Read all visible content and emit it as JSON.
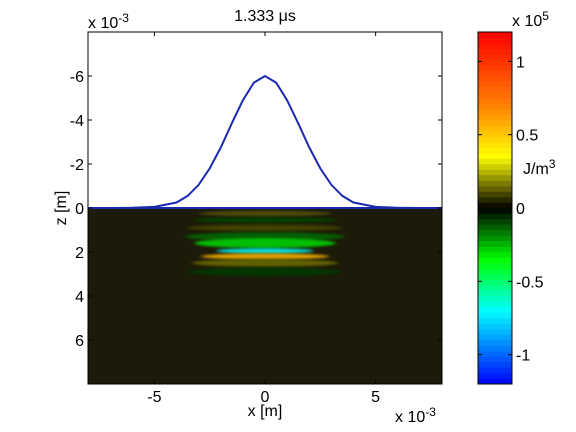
{
  "chart_data": [
    {
      "type": "heatmap",
      "title": "1.333 μs",
      "xlabel": "x [m]",
      "ylabel": "z [m]",
      "x_multiplier": "x 10",
      "x_multiplier_exp": "-3",
      "y_multiplier": "x 10",
      "y_multiplier_exp": "-3",
      "xlim": [
        -8,
        8
      ],
      "ylim": [
        -8,
        8
      ],
      "y_reversed": true,
      "x_ticks": [
        -5,
        0,
        5
      ],
      "x_tick_labels": [
        "-5",
        "0",
        "5"
      ],
      "y_ticks": [
        -6,
        -4,
        -2,
        0,
        2,
        4,
        6
      ],
      "y_tick_labels": [
        "-6",
        "-4",
        "-2",
        "0",
        "2",
        "4",
        "6"
      ],
      "background_color": "#1c1a08",
      "surface_line": {
        "z": 0,
        "color": "#1a2ab0"
      },
      "pulse_curve": {
        "color": "#1a2ab0",
        "type": "line",
        "x": [
          -8,
          -7,
          -6,
          -5,
          -4,
          -3.5,
          -3,
          -2.5,
          -2,
          -1.5,
          -1,
          -0.5,
          0,
          0.5,
          1,
          1.5,
          2,
          2.5,
          3,
          3.5,
          4,
          5,
          6,
          7,
          8
        ],
        "z": [
          0,
          0,
          -0.01,
          -0.05,
          -0.25,
          -0.55,
          -1.05,
          -1.8,
          -2.75,
          -3.85,
          -4.9,
          -5.7,
          -6.0,
          -5.7,
          -4.9,
          -3.85,
          -2.75,
          -1.8,
          -1.05,
          -0.55,
          -0.25,
          -0.05,
          -0.01,
          0,
          0
        ]
      },
      "energy_bands": [
        {
          "z_center": 0.25,
          "x_halfwidth": 3.0,
          "z_halfheight": 0.12,
          "value": 0.12
        },
        {
          "z_center": 0.55,
          "x_halfwidth": 3.3,
          "z_halfheight": 0.12,
          "value": -0.1
        },
        {
          "z_center": 0.9,
          "x_halfwidth": 3.5,
          "z_halfheight": 0.15,
          "value": 0.1
        },
        {
          "z_center": 1.3,
          "x_halfwidth": 3.6,
          "z_halfheight": 0.2,
          "value": -0.15
        },
        {
          "z_center": 1.6,
          "x_halfwidth": 3.2,
          "z_halfheight": 0.22,
          "value": -0.3
        },
        {
          "z_center": 1.95,
          "x_halfwidth": 2.2,
          "z_halfheight": 0.12,
          "value": -0.7
        },
        {
          "z_center": 2.2,
          "x_halfwidth": 2.9,
          "z_halfheight": 0.14,
          "value": 0.55
        },
        {
          "z_center": 2.5,
          "x_halfwidth": 3.3,
          "z_halfheight": 0.18,
          "value": 0.15
        },
        {
          "z_center": 2.9,
          "x_halfwidth": 3.5,
          "z_halfheight": 0.2,
          "value": -0.08
        }
      ],
      "colorbar": {
        "label": "J/m",
        "label_exp": "3",
        "multiplier": "x 10",
        "multiplier_exp": "5",
        "range": [
          -1.2,
          1.2
        ],
        "ticks": [
          -1,
          -0.5,
          0,
          0.5,
          1
        ],
        "tick_labels": [
          "-1",
          "-0.5",
          "0",
          "0.5",
          "1"
        ],
        "colormap": [
          {
            "v": -1.2,
            "color": "#0000ff"
          },
          {
            "v": -0.7,
            "color": "#00ffff"
          },
          {
            "v": -0.35,
            "color": "#00ff00"
          },
          {
            "v": 0.0,
            "color": "#000000"
          },
          {
            "v": 0.35,
            "color": "#ffff00"
          },
          {
            "v": 0.7,
            "color": "#ff8000"
          },
          {
            "v": 1.2,
            "color": "#ff0000"
          }
        ]
      }
    }
  ]
}
